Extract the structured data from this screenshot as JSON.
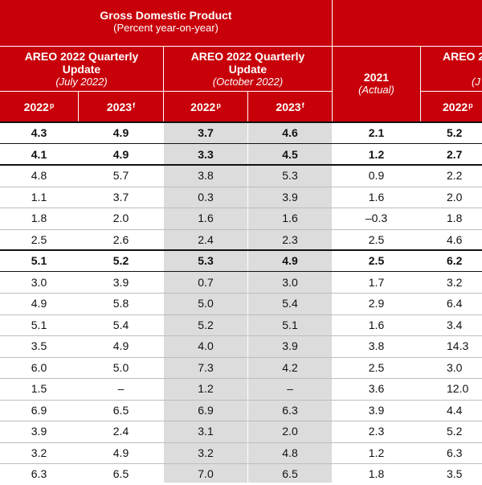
{
  "header": {
    "gdp_title": "Gross Domestic Product",
    "gdp_sub": "(Percent year-on-year)",
    "group_july": {
      "title": "AREO 2022 Quarterly Update",
      "sub": "(July 2022)"
    },
    "group_october": {
      "title": "AREO 2022 Quarterly Update",
      "sub": "(October 2022)"
    },
    "actual": {
      "year": "2021",
      "sub": "(Actual)"
    },
    "right_group": {
      "title": "AREO 2",
      "sub": "(J"
    },
    "columns": [
      {
        "year": "2022",
        "mark": "p"
      },
      {
        "year": "2023",
        "mark": "f"
      },
      {
        "year": "2022",
        "mark": "p"
      },
      {
        "year": "2023",
        "mark": "f"
      },
      {
        "year": "2022",
        "mark": "p"
      }
    ]
  },
  "rows": [
    {
      "bold": true,
      "v": [
        "4.3",
        "4.9",
        "3.7",
        "4.6",
        "2.1",
        "5.2"
      ]
    },
    {
      "bold": true,
      "v": [
        "4.1",
        "4.9",
        "3.3",
        "4.5",
        "1.2",
        "2.7"
      ]
    },
    {
      "bold": false,
      "v": [
        "4.8",
        "5.7",
        "3.8",
        "5.3",
        "0.9",
        "2.2"
      ]
    },
    {
      "bold": false,
      "v": [
        "1.1",
        "3.7",
        "0.3",
        "3.9",
        "1.6",
        "2.0"
      ]
    },
    {
      "bold": false,
      "v": [
        "1.8",
        "2.0",
        "1.6",
        "1.6",
        "–0.3",
        "1.8"
      ]
    },
    {
      "bold": false,
      "v": [
        "2.5",
        "2.6",
        "2.4",
        "2.3",
        "2.5",
        "4.6"
      ]
    },
    {
      "bold": true,
      "v": [
        "5.1",
        "5.2",
        "5.3",
        "4.9",
        "2.5",
        "6.2"
      ]
    },
    {
      "bold": false,
      "v": [
        "3.0",
        "3.9",
        "0.7",
        "3.0",
        "1.7",
        "3.2"
      ]
    },
    {
      "bold": false,
      "v": [
        "4.9",
        "5.8",
        "5.0",
        "5.4",
        "2.9",
        "6.4"
      ]
    },
    {
      "bold": false,
      "v": [
        "5.1",
        "5.4",
        "5.2",
        "5.1",
        "1.6",
        "3.4"
      ]
    },
    {
      "bold": false,
      "v": [
        "3.5",
        "4.9",
        "4.0",
        "3.9",
        "3.8",
        "14.3"
      ]
    },
    {
      "bold": false,
      "v": [
        "6.0",
        "5.0",
        "7.3",
        "4.2",
        "2.5",
        "3.0"
      ]
    },
    {
      "bold": false,
      "v": [
        "1.5",
        "–",
        "1.2",
        "–",
        "3.6",
        "12.0"
      ]
    },
    {
      "bold": false,
      "v": [
        "6.9",
        "6.5",
        "6.9",
        "6.3",
        "3.9",
        "4.4"
      ]
    },
    {
      "bold": false,
      "v": [
        "3.9",
        "2.4",
        "3.1",
        "2.0",
        "2.3",
        "5.2"
      ]
    },
    {
      "bold": false,
      "v": [
        "3.2",
        "4.9",
        "3.2",
        "4.8",
        "1.2",
        "6.3"
      ]
    },
    {
      "bold": false,
      "v": [
        "6.3",
        "6.5",
        "7.0",
        "6.5",
        "1.8",
        "3.5"
      ]
    }
  ]
}
